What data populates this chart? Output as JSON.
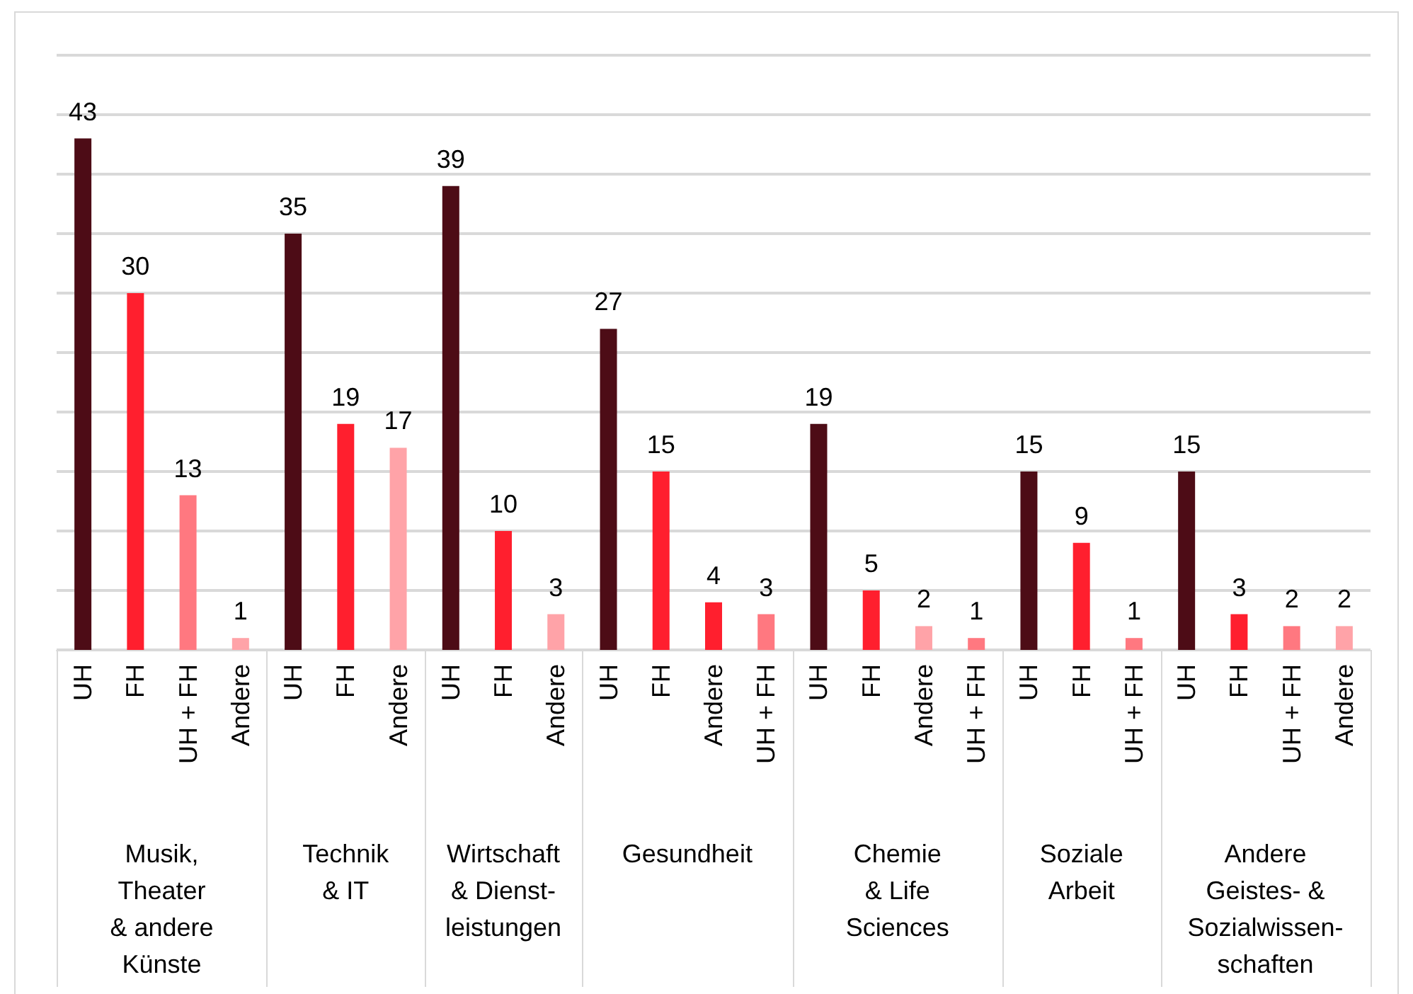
{
  "chart_data": {
    "type": "bar",
    "categories": [
      "UH",
      "FH",
      "UH + FH",
      "Andere",
      "UH",
      "FH",
      "Andere",
      "UH",
      "FH",
      "Andere",
      "UH",
      "FH",
      "Andere",
      "UH + FH",
      "UH",
      "FH",
      "Andere",
      "UH + FH",
      "UH",
      "FH",
      "UH + FH",
      "UH",
      "FH",
      "UH + FH",
      "Andere"
    ],
    "series": [
      {
        "values": [
          43,
          30,
          13,
          1,
          null,
          null,
          null,
          null,
          null,
          null,
          null,
          null,
          null,
          null,
          null,
          null,
          null,
          null,
          null,
          null,
          null,
          null,
          null,
          null,
          null
        ],
        "colors": [
          "#4d0c16",
          "#ff1f2e",
          "#ff7880",
          "#ffa3a8",
          null,
          null,
          null,
          null,
          null,
          null,
          null,
          null,
          null,
          null,
          null,
          null,
          null,
          null,
          null,
          null,
          null,
          null,
          null,
          null,
          null
        ]
      },
      {
        "values": [
          null,
          null,
          null,
          null,
          35,
          19,
          17,
          null,
          null,
          null,
          null,
          null,
          null,
          null,
          null,
          null,
          null,
          null,
          null,
          null,
          null,
          null,
          null,
          null,
          null
        ],
        "colors": [
          null,
          null,
          null,
          null,
          "#4d0c16",
          "#ff1f2e",
          "#ffa3a8",
          null,
          null,
          null,
          null,
          null,
          null,
          null,
          null,
          null,
          null,
          null,
          null,
          null,
          null,
          null,
          null,
          null,
          null
        ]
      },
      {
        "values": [
          null,
          null,
          null,
          null,
          null,
          null,
          null,
          39,
          10,
          3,
          null,
          null,
          null,
          null,
          null,
          null,
          null,
          null,
          null,
          null,
          null,
          null,
          null,
          null,
          null
        ],
        "colors": [
          null,
          null,
          null,
          null,
          null,
          null,
          null,
          "#4d0c16",
          "#ff1f2e",
          "#ffa3a8",
          null,
          null,
          null,
          null,
          null,
          null,
          null,
          null,
          null,
          null,
          null,
          null,
          null,
          null,
          null
        ]
      },
      {
        "values": [
          null,
          null,
          null,
          null,
          null,
          null,
          null,
          null,
          null,
          null,
          27,
          15,
          4,
          3,
          null,
          null,
          null,
          null,
          null,
          null,
          null,
          null,
          null,
          null,
          null
        ],
        "colors": [
          null,
          null,
          null,
          null,
          null,
          null,
          null,
          null,
          null,
          null,
          "#4d0c16",
          "#ff1f2e",
          "#ff1f2e",
          "#ff7880",
          null,
          null,
          null,
          null,
          null,
          null,
          null,
          null,
          null,
          null,
          null
        ]
      },
      {
        "values": [
          null,
          null,
          null,
          null,
          null,
          null,
          null,
          null,
          null,
          null,
          null,
          null,
          null,
          null,
          19,
          5,
          2,
          1,
          null,
          null,
          null,
          null,
          null,
          null,
          null
        ],
        "colors": [
          null,
          null,
          null,
          null,
          null,
          null,
          null,
          null,
          null,
          null,
          null,
          null,
          null,
          null,
          "#4d0c16",
          "#ff1f2e",
          "#ffa3a8",
          "#ff7880",
          null,
          null,
          null,
          null,
          null,
          null,
          null
        ]
      },
      {
        "values": [
          null,
          null,
          null,
          null,
          null,
          null,
          null,
          null,
          null,
          null,
          null,
          null,
          null,
          null,
          null,
          null,
          null,
          null,
          15,
          9,
          1,
          null,
          null,
          null,
          null
        ],
        "colors": [
          null,
          null,
          null,
          null,
          null,
          null,
          null,
          null,
          null,
          null,
          null,
          null,
          null,
          null,
          null,
          null,
          null,
          null,
          "#4d0c16",
          "#ff1f2e",
          "#ff7880",
          null,
          null,
          null,
          null
        ]
      },
      {
        "values": [
          null,
          null,
          null,
          null,
          null,
          null,
          null,
          null,
          null,
          null,
          null,
          null,
          null,
          null,
          null,
          null,
          null,
          null,
          null,
          null,
          null,
          15,
          3,
          2,
          2
        ],
        "colors": [
          null,
          null,
          null,
          null,
          null,
          null,
          null,
          null,
          null,
          null,
          null,
          null,
          null,
          null,
          null,
          null,
          null,
          null,
          null,
          null,
          null,
          "#4d0c16",
          "#ff1f2e",
          "#ff7880",
          "#ffa3a8"
        ]
      }
    ],
    "ylim": [
      0,
      50
    ],
    "yticks": [
      {
        "value": 0,
        "label": null
      },
      {
        "value": 5,
        "label": null
      },
      {
        "value": 10,
        "label": null
      },
      {
        "value": 15,
        "label": null
      },
      {
        "value": 20,
        "label": null
      },
      {
        "value": 25,
        "label": null
      },
      {
        "value": 30,
        "label": null
      },
      {
        "value": 35,
        "label": null
      },
      {
        "value": 40,
        "label": null
      },
      {
        "value": 45,
        "label": null
      },
      {
        "value": 50,
        "label": null
      }
    ],
    "annotations": [
      "Musik,\nTheater\n& andere\nKünste",
      "Technik\n& IT",
      "Wirtschaft\n& Dienst-\nleistungen",
      "Gesundheit",
      "Chemie\n& Life\nSciences",
      "Soziale\nArbeit",
      "Andere\nGeistes- &\nSozialwissen-\nschaften"
    ],
    "tick_labels": "x",
    "grid": true,
    "data_labels": true
  }
}
